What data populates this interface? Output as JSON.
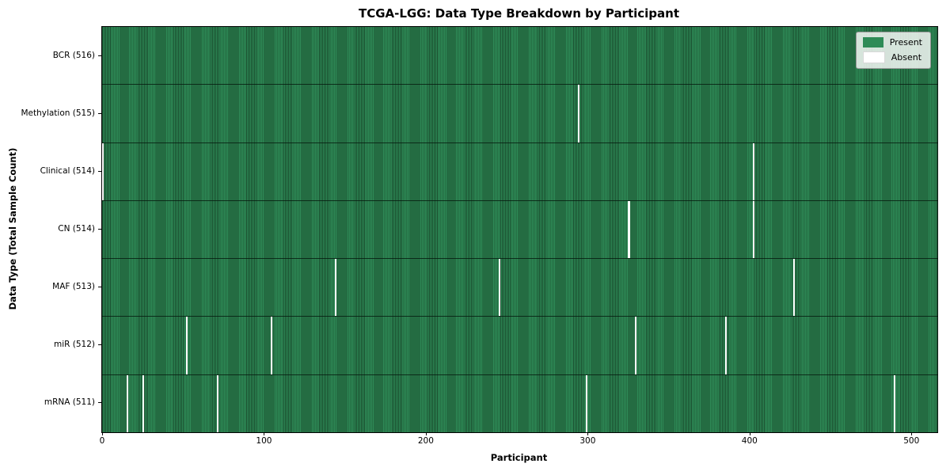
{
  "figure": {
    "title": "TCGA-LGG: Data Type Breakdown by Participant",
    "xlabel": "Participant",
    "ylabel": "Data Type (Total Sample Count)"
  },
  "legend": {
    "present_label": "Present",
    "absent_label": "Absent"
  },
  "chart_data": {
    "type": "heatmap",
    "title": "TCGA-LGG: Data Type Breakdown by Participant",
    "xlabel": "Participant",
    "ylabel": "Data Type (Total Sample Count)",
    "n_participants": 516,
    "x_ticks": [
      0,
      100,
      200,
      300,
      400,
      500
    ],
    "x_range": [
      0,
      516
    ],
    "grid": false,
    "legend_position": "upper right",
    "legend_entries": [
      {
        "label": "Present",
        "color": "#2e8b57"
      },
      {
        "label": "Absent",
        "color": "#ffffff"
      }
    ],
    "colors": {
      "present": "#2e8b57",
      "present_edge": "#1a4d2e",
      "absent": "#ffffff",
      "background": "#ffffff"
    },
    "rows": [
      {
        "data_type": "BCR",
        "label": "BCR (516)",
        "total": 516,
        "absent_participants": []
      },
      {
        "data_type": "Methylation",
        "label": "Methylation (515)",
        "total": 515,
        "absent_participants": [
          294
        ]
      },
      {
        "data_type": "Clinical",
        "label": "Clinical (514)",
        "total": 514,
        "absent_participants": [
          0,
          402
        ]
      },
      {
        "data_type": "CN",
        "label": "CN (514)",
        "total": 514,
        "absent_participants": [
          325,
          402
        ]
      },
      {
        "data_type": "MAF",
        "label": "MAF (513)",
        "total": 513,
        "absent_participants": [
          144,
          245,
          427
        ]
      },
      {
        "data_type": "miR",
        "label": "miR (512)",
        "total": 512,
        "absent_participants": [
          52,
          104,
          329,
          385
        ]
      },
      {
        "data_type": "mRNA",
        "label": "mRNA (511)",
        "total": 511,
        "absent_participants": [
          15,
          25,
          71,
          299,
          489
        ]
      }
    ]
  }
}
